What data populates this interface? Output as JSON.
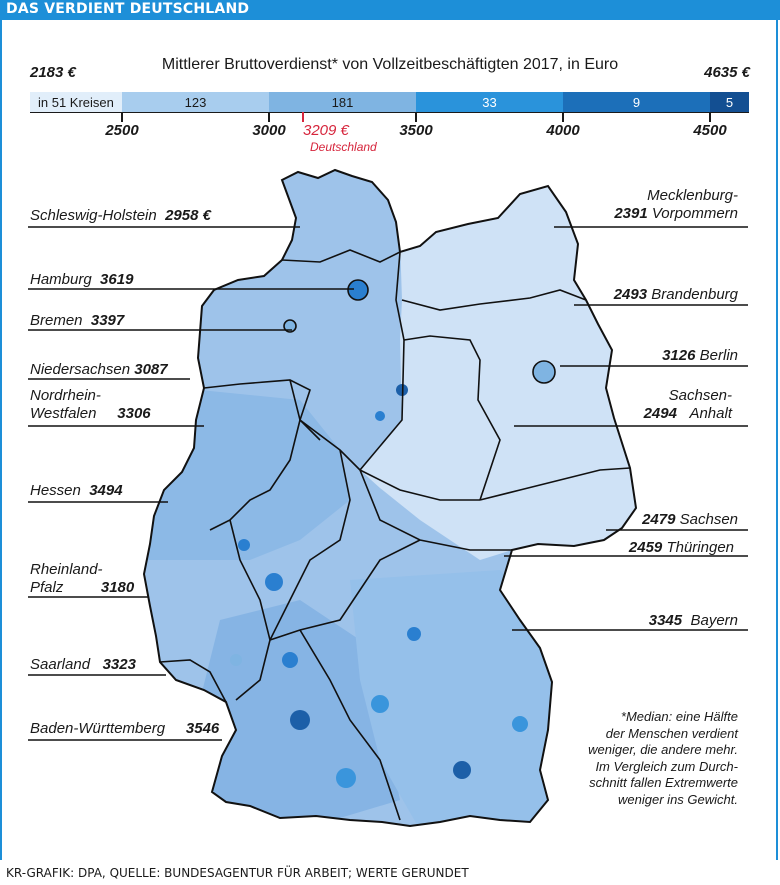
{
  "header": {
    "banner": "DAS VERDIENT DEUTSCHLAND"
  },
  "title": "Mittlerer Bruttoverdienst* von Vollzeitbeschäftigten 2017, in Euro",
  "extremes": {
    "min": "2183 €",
    "max": "4635 €"
  },
  "scale": {
    "segments": [
      {
        "label": "in 51 Kreisen",
        "from": 2183,
        "to": 2500,
        "color": "#e1eefa"
      },
      {
        "label": "123",
        "from": 2500,
        "to": 3000,
        "color": "#a8cdee"
      },
      {
        "label": "181",
        "from": 3000,
        "to": 3500,
        "color": "#7fb4e2"
      },
      {
        "label": "33",
        "from": 3500,
        "to": 4000,
        "color": "#2a93db"
      },
      {
        "label": "9",
        "from": 4000,
        "to": 4500,
        "color": "#1c6fb9"
      },
      {
        "label": "5",
        "from": 4500,
        "to": 4635,
        "color": "#134f92"
      }
    ],
    "ticks": [
      "2500",
      "3000",
      "3500",
      "4000",
      "4500"
    ],
    "national": {
      "value": "3209 €",
      "label": "Deutschland"
    }
  },
  "states": {
    "sh": {
      "name": "Schleswig-Holstein",
      "value": "2958 €"
    },
    "hh": {
      "name": "Hamburg",
      "value": "3619"
    },
    "hb": {
      "name": "Bremen",
      "value": "3397"
    },
    "ni": {
      "name": "Niedersachsen",
      "value": "3087"
    },
    "nw": {
      "name1": "Nordrhein-",
      "name2": "Westfalen",
      "value": "3306"
    },
    "he": {
      "name": "Hessen",
      "value": "3494"
    },
    "rp": {
      "name1": "Rheinland-",
      "name2": "Pfalz",
      "value": "3180"
    },
    "sl": {
      "name": "Saarland",
      "value": "3323"
    },
    "bw": {
      "name": "Baden-Württemberg",
      "value": "3546"
    },
    "mv": {
      "name1": "Mecklenburg-",
      "name2": "Vorpommern",
      "value": "2391"
    },
    "bb": {
      "name": "Brandenburg",
      "value": "2493"
    },
    "be": {
      "name": "Berlin",
      "value": "3126"
    },
    "st": {
      "name1": "Sachsen-",
      "name2": "Anhalt",
      "value": "2494"
    },
    "sn": {
      "name": "Sachsen",
      "value": "2479"
    },
    "th": {
      "name": "Thüringen",
      "value": "2459"
    },
    "by": {
      "name": "Bayern",
      "value": "3345"
    }
  },
  "note": {
    "lines": [
      "*Median: eine Hälfte",
      "der Menschen verdient",
      "weniger, die andere mehr.",
      "Im Vergleich zum Durch-",
      "schnitt fallen Extremwerte",
      "weniger ins Gewicht."
    ]
  },
  "source": "KR-GRAFIK: DPA, QUELLE: BUNDESAGENTUR FÜR ARBEIT; WERTE GERUNDET"
}
